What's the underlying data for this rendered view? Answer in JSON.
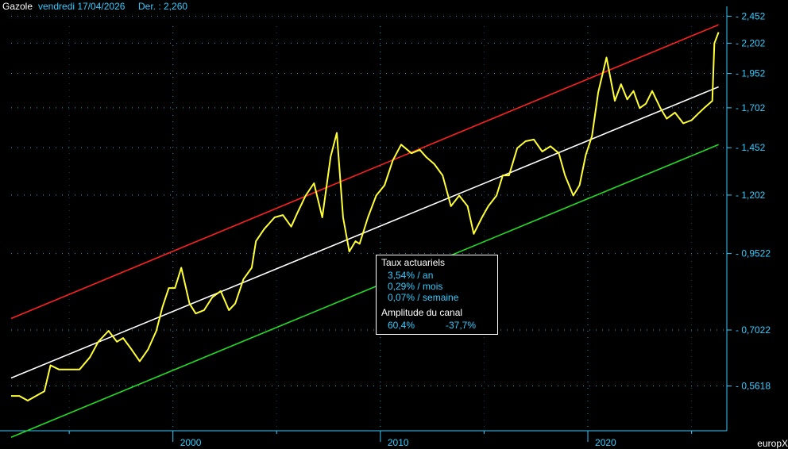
{
  "header": {
    "instrument": "Gazole",
    "date": "vendredi 17/04/2026",
    "last": "Der. : 2,260"
  },
  "brand": "europX",
  "infobox": {
    "title_rates": "Taux actuariels",
    "rate_year": "3,54% / an",
    "rate_month": "0,29% / mois",
    "rate_week": "0,07% / semaine",
    "title_channel": "Amplitude du canal",
    "amp_up": "60,4%",
    "amp_down": "-37,7%"
  },
  "colors": {
    "background": "#000000",
    "price": "#ffff33",
    "upper_channel": "#ff2020",
    "middle_channel": "#ffffff",
    "lower_channel": "#22dd22",
    "axis": "#33ccff",
    "grid": "#33ccff"
  },
  "chart_data": {
    "type": "line",
    "scale": "log",
    "x_ticks": [
      2000,
      2010,
      2020
    ],
    "y_ticks": [
      "2,452",
      "2,202",
      "1,952",
      "1,702",
      "1,452",
      "1,202",
      "0,9522",
      "0,7022",
      "0,5618"
    ],
    "y_tick_values": [
      2.452,
      2.202,
      1.952,
      1.702,
      1.452,
      1.202,
      0.9522,
      0.7022,
      0.5618
    ],
    "ylim": [
      0.47,
      2.55
    ],
    "xlim": [
      1992.2,
      2026.7
    ],
    "series": [
      {
        "role": "price",
        "x": [
          1992.2,
          1992.6,
          1993.0,
          1993.4,
          1993.8,
          1994.1,
          1994.5,
          1995.0,
          1995.5,
          1996.0,
          1996.4,
          1996.9,
          1997.3,
          1997.6,
          1998.0,
          1998.4,
          1998.8,
          1999.2,
          1999.5,
          1999.8,
          2000.1,
          2000.4,
          2000.8,
          2001.1,
          2001.5,
          2001.9,
          2002.3,
          2002.7,
          2003.0,
          2003.4,
          2003.8,
          2004.0,
          2004.4,
          2004.9,
          2005.3,
          2005.7,
          2006.0,
          2006.4,
          2006.8,
          2007.2,
          2007.6,
          2007.9,
          2008.2,
          2008.5,
          2008.8,
          2009.0,
          2009.4,
          2009.8,
          2010.2,
          2010.6,
          2011.0,
          2011.5,
          2011.9,
          2012.2,
          2012.6,
          2013.0,
          2013.4,
          2013.8,
          2014.2,
          2014.5,
          2014.9,
          2015.2,
          2015.6,
          2015.9,
          2016.2,
          2016.6,
          2017.0,
          2017.4,
          2017.8,
          2018.2,
          2018.6,
          2018.9,
          2019.3,
          2019.6,
          2019.9,
          2020.2,
          2020.5,
          2020.9,
          2021.3,
          2021.6,
          2021.9,
          2022.2,
          2022.5,
          2022.8,
          2023.1,
          2023.5,
          2023.8,
          2024.2,
          2024.6,
          2025.0,
          2025.3,
          2025.6,
          2026.0,
          2026.1,
          2026.3
        ],
        "y": [
          0.54,
          0.54,
          0.53,
          0.54,
          0.55,
          0.61,
          0.6,
          0.6,
          0.6,
          0.63,
          0.67,
          0.7,
          0.67,
          0.68,
          0.65,
          0.62,
          0.65,
          0.7,
          0.77,
          0.83,
          0.83,
          0.9,
          0.78,
          0.75,
          0.76,
          0.8,
          0.82,
          0.76,
          0.78,
          0.86,
          0.9,
          1.0,
          1.05,
          1.1,
          1.11,
          1.06,
          1.12,
          1.2,
          1.26,
          1.1,
          1.4,
          1.54,
          1.1,
          0.96,
          1.0,
          0.99,
          1.1,
          1.2,
          1.25,
          1.38,
          1.47,
          1.42,
          1.44,
          1.4,
          1.36,
          1.3,
          1.15,
          1.2,
          1.15,
          1.03,
          1.1,
          1.15,
          1.2,
          1.3,
          1.3,
          1.45,
          1.49,
          1.5,
          1.43,
          1.46,
          1.42,
          1.3,
          1.2,
          1.25,
          1.41,
          1.52,
          1.81,
          2.08,
          1.75,
          1.87,
          1.76,
          1.82,
          1.7,
          1.73,
          1.82,
          1.7,
          1.63,
          1.67,
          1.6,
          1.62,
          1.66,
          1.7,
          1.75,
          2.2,
          2.3
        ]
      },
      {
        "role": "upper_channel",
        "x": [
          1992.2,
          2026.3
        ],
        "y": [
          0.735,
          2.37
        ]
      },
      {
        "role": "middle_channel",
        "x": [
          1992.2,
          2026.3
        ],
        "y": [
          0.58,
          1.85
        ]
      },
      {
        "role": "lower_channel",
        "x": [
          1992.2,
          2026.3
        ],
        "y": [
          0.458,
          1.47
        ]
      }
    ]
  }
}
